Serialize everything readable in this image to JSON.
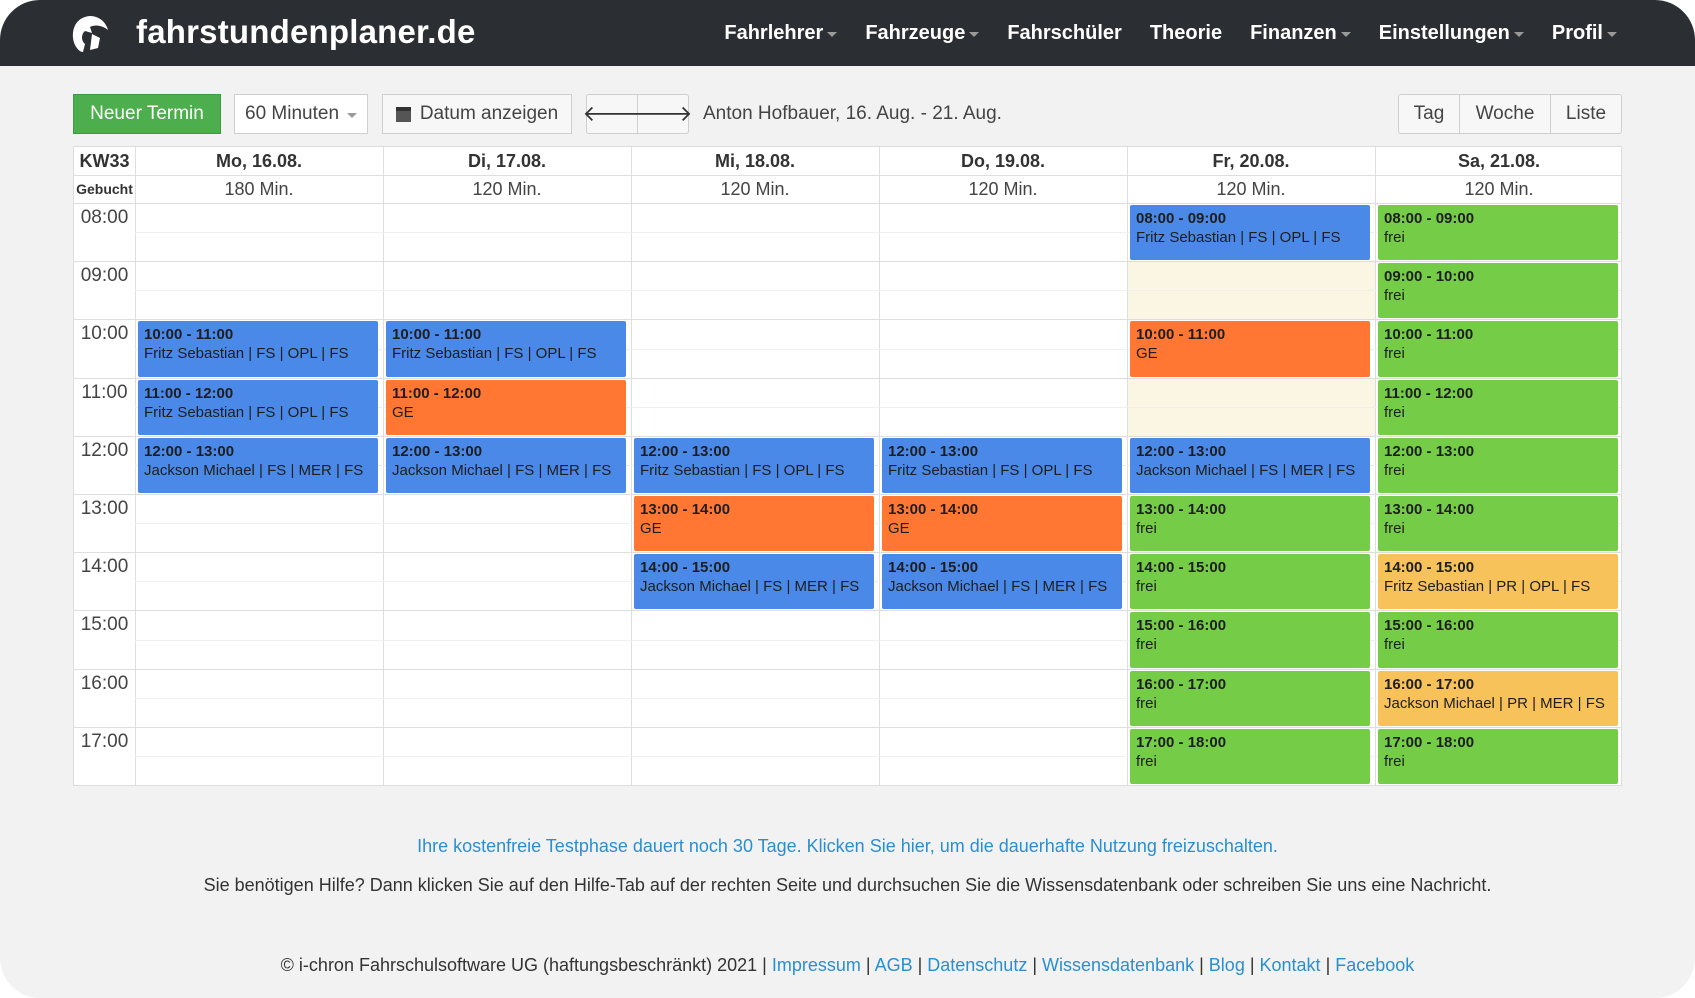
{
  "nav": {
    "brand": "fahrstundenplaner.de",
    "items": [
      {
        "label": "Fahrlehrer",
        "dropdown": true
      },
      {
        "label": "Fahrzeuge",
        "dropdown": true
      },
      {
        "label": "Fahrschüler",
        "dropdown": false
      },
      {
        "label": "Theorie",
        "dropdown": false
      },
      {
        "label": "Finanzen",
        "dropdown": true
      },
      {
        "label": "Einstellungen",
        "dropdown": true
      },
      {
        "label": "Profil",
        "dropdown": true
      }
    ]
  },
  "toolbar": {
    "new_label": "Neuer Termin",
    "duration_value": "60 Minuten",
    "date_label": "Datum anzeigen",
    "prev_icon": "arrow-left-icon",
    "next_icon": "arrow-right-icon",
    "range_label": "Anton Hofbauer, 16. Aug. - 21. Aug.",
    "view_tag": "Tag",
    "view_woche": "Woche",
    "view_liste": "Liste"
  },
  "calendar": {
    "week_label": "KW33",
    "booked_label": "Gebucht",
    "times": [
      "08:00",
      "09:00",
      "10:00",
      "11:00",
      "12:00",
      "13:00",
      "14:00",
      "15:00",
      "16:00",
      "17:00"
    ],
    "days": [
      {
        "label": "Mo, 16.08.",
        "booked": "180 Min."
      },
      {
        "label": "Di, 17.08.",
        "booked": "120 Min."
      },
      {
        "label": "Mi, 18.08.",
        "booked": "120 Min."
      },
      {
        "label": "Do, 19.08.",
        "booked": "120 Min."
      },
      {
        "label": "Fr, 20.08.",
        "booked": "120 Min."
      },
      {
        "label": "Sa, 21.08.",
        "booked": "120 Min."
      }
    ],
    "unavailable": [
      {
        "day": 4,
        "start": 9,
        "end": 10
      },
      {
        "day": 4,
        "start": 11,
        "end": 12
      }
    ],
    "events": [
      {
        "day": 0,
        "start": 10,
        "time": "10:00 - 11:00",
        "desc": "Fritz Sebastian | FS | OPL | FS",
        "type": "blue"
      },
      {
        "day": 0,
        "start": 11,
        "time": "11:00 - 12:00",
        "desc": "Fritz Sebastian | FS | OPL | FS",
        "type": "blue"
      },
      {
        "day": 0,
        "start": 12,
        "time": "12:00 - 13:00",
        "desc": "Jackson Michael | FS | MER | FS",
        "type": "blue"
      },
      {
        "day": 1,
        "start": 10,
        "time": "10:00 - 11:00",
        "desc": "Fritz Sebastian | FS | OPL | FS",
        "type": "blue"
      },
      {
        "day": 1,
        "start": 11,
        "time": "11:00 - 12:00",
        "desc": "GE",
        "type": "orange"
      },
      {
        "day": 1,
        "start": 12,
        "time": "12:00 - 13:00",
        "desc": "Jackson Michael | FS | MER | FS",
        "type": "blue"
      },
      {
        "day": 2,
        "start": 12,
        "time": "12:00 - 13:00",
        "desc": "Fritz Sebastian | FS | OPL | FS",
        "type": "blue"
      },
      {
        "day": 2,
        "start": 13,
        "time": "13:00 - 14:00",
        "desc": "GE",
        "type": "orange"
      },
      {
        "day": 2,
        "start": 14,
        "time": "14:00 - 15:00",
        "desc": "Jackson Michael | FS | MER | FS",
        "type": "blue"
      },
      {
        "day": 3,
        "start": 12,
        "time": "12:00 - 13:00",
        "desc": "Fritz Sebastian | FS | OPL | FS",
        "type": "blue"
      },
      {
        "day": 3,
        "start": 13,
        "time": "13:00 - 14:00",
        "desc": "GE",
        "type": "orange"
      },
      {
        "day": 3,
        "start": 14,
        "time": "14:00 - 15:00",
        "desc": "Jackson Michael | FS | MER | FS",
        "type": "blue"
      },
      {
        "day": 4,
        "start": 8,
        "time": "08:00 - 09:00",
        "desc": "Fritz Sebastian | FS | OPL | FS",
        "type": "blue"
      },
      {
        "day": 4,
        "start": 10,
        "time": "10:00 - 11:00",
        "desc": "GE",
        "type": "orange"
      },
      {
        "day": 4,
        "start": 12,
        "time": "12:00 - 13:00",
        "desc": "Jackson Michael | FS | MER | FS",
        "type": "blue"
      },
      {
        "day": 4,
        "start": 13,
        "time": "13:00 - 14:00",
        "desc": "frei",
        "type": "green"
      },
      {
        "day": 4,
        "start": 14,
        "time": "14:00 - 15:00",
        "desc": "frei",
        "type": "green"
      },
      {
        "day": 4,
        "start": 15,
        "time": "15:00 - 16:00",
        "desc": "frei",
        "type": "green"
      },
      {
        "day": 4,
        "start": 16,
        "time": "16:00 - 17:00",
        "desc": "frei",
        "type": "green"
      },
      {
        "day": 4,
        "start": 17,
        "time": "17:00 - 18:00",
        "desc": "frei",
        "type": "green"
      },
      {
        "day": 5,
        "start": 8,
        "time": "08:00 - 09:00",
        "desc": "frei",
        "type": "green"
      },
      {
        "day": 5,
        "start": 9,
        "time": "09:00 - 10:00",
        "desc": "frei",
        "type": "green"
      },
      {
        "day": 5,
        "start": 10,
        "time": "10:00 - 11:00",
        "desc": "frei",
        "type": "green"
      },
      {
        "day": 5,
        "start": 11,
        "time": "11:00 - 12:00",
        "desc": "frei",
        "type": "green"
      },
      {
        "day": 5,
        "start": 12,
        "time": "12:00 - 13:00",
        "desc": "frei",
        "type": "green"
      },
      {
        "day": 5,
        "start": 13,
        "time": "13:00 - 14:00",
        "desc": "frei",
        "type": "green"
      },
      {
        "day": 5,
        "start": 14,
        "time": "14:00 - 15:00",
        "desc": "Fritz Sebastian | PR | OPL | FS",
        "type": "yellow"
      },
      {
        "day": 5,
        "start": 15,
        "time": "15:00 - 16:00",
        "desc": "frei",
        "type": "green"
      },
      {
        "day": 5,
        "start": 16,
        "time": "16:00 - 17:00",
        "desc": "Jackson Michael | PR | MER | FS",
        "type": "yellow"
      },
      {
        "day": 5,
        "start": 17,
        "time": "17:00 - 18:00",
        "desc": "frei",
        "type": "green"
      }
    ]
  },
  "trial_text": "Ihre kostenfreie Testphase dauert noch 30 Tage. Klicken Sie hier, um die dauerhafte Nutzung freizuschalten.",
  "help_text": "Sie benötigen Hilfe? Dann klicken Sie auf den Hilfe-Tab auf der rechten Seite und durchsuchen Sie die Wissensdatenbank oder schreiben Sie uns eine Nachricht.",
  "footer": {
    "copyright": "© i-chron Fahrschulsoftware UG (haftungsbeschränkt) 2021 |",
    "links": [
      "Impressum",
      "AGB",
      "Datenschutz",
      "Wissensdatenbank",
      "Blog",
      "Kontakt",
      "Facebook"
    ]
  },
  "colors": {
    "navbar": "#2b2e33",
    "new_button": "#4cae4c",
    "event_blue": "#4a89e8",
    "event_orange": "#ff7733",
    "event_green": "#75cc47",
    "event_yellow": "#f7c25a",
    "unavailable": "#fbf6e3",
    "link": "#2a8fd0"
  }
}
